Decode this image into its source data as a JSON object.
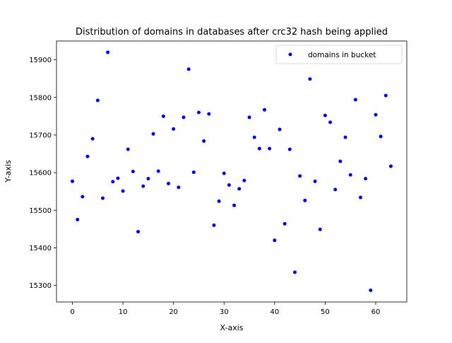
{
  "chart_data": {
    "type": "scatter",
    "title": "Distribution of domains in databases after crc32 hash being applied",
    "xlabel": "X-axis",
    "ylabel": "Y-axis",
    "xlim": [
      -3.15,
      66.15
    ],
    "ylim": [
      15256,
      15950
    ],
    "xticks": [
      0,
      10,
      20,
      30,
      40,
      50,
      60
    ],
    "yticks": [
      15300,
      15400,
      15500,
      15600,
      15700,
      15800,
      15900
    ],
    "grid": false,
    "legend_position": "top-right",
    "series": [
      {
        "name": "domains in bucket",
        "color": "#0000ff",
        "marker": "circle",
        "x": [
          0,
          1,
          2,
          3,
          4,
          5,
          6,
          7,
          8,
          9,
          10,
          11,
          12,
          13,
          14,
          15,
          16,
          17,
          18,
          19,
          20,
          21,
          22,
          23,
          24,
          25,
          26,
          27,
          28,
          29,
          30,
          31,
          32,
          33,
          34,
          35,
          36,
          37,
          38,
          39,
          40,
          41,
          42,
          43,
          44,
          45,
          46,
          47,
          48,
          49,
          50,
          51,
          52,
          53,
          54,
          55,
          56,
          57,
          58,
          59,
          60,
          61,
          62,
          63
        ],
        "y": [
          15577,
          15475,
          15536,
          15643,
          15690,
          15792,
          15532,
          15920,
          15576,
          15585,
          15551,
          15662,
          15603,
          15443,
          15564,
          15584,
          15703,
          15604,
          15750,
          15571,
          15716,
          15561,
          15747,
          15875,
          15601,
          15760,
          15684,
          15756,
          15460,
          15524,
          15598,
          15567,
          15513,
          15557,
          15579,
          15747,
          15694,
          15664,
          15767,
          15664,
          15420,
          15715,
          15464,
          15662,
          15335,
          15591,
          15526,
          15849,
          15577,
          15449,
          15752,
          15734,
          15555,
          15630,
          15694,
          15594,
          15794,
          15534,
          15584,
          15287,
          15754,
          15696,
          15805,
          15617
        ]
      }
    ]
  }
}
